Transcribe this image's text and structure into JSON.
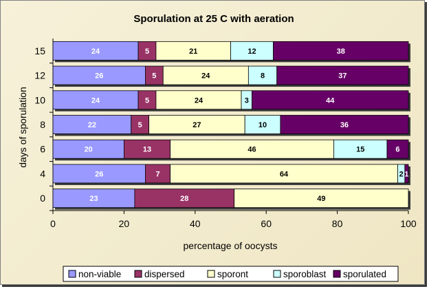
{
  "chart_data": {
    "type": "bar",
    "orientation": "horizontal",
    "stacked": "percent",
    "title": "Sporulation at 25 C with aeration",
    "xlabel": "percentage of oocysts",
    "ylabel": "days of sporulation",
    "xlim": [
      0,
      100
    ],
    "xticks": [
      0,
      20,
      40,
      60,
      80,
      100
    ],
    "grid": false,
    "legend_position": "bottom",
    "categories": [
      "0",
      "4",
      "6",
      "8",
      "10",
      "12",
      "15"
    ],
    "series": [
      {
        "name": "non-viable",
        "color": "#9999ff",
        "label_color": "#ffffff",
        "values": [
          23,
          26,
          20,
          22,
          24,
          26,
          24
        ]
      },
      {
        "name": "dispersed",
        "color": "#993366",
        "label_color": "#ffffff",
        "values": [
          28,
          7,
          13,
          5,
          5,
          5,
          5
        ]
      },
      {
        "name": "sporont",
        "color": "#ffffcc",
        "label_color": "#000000",
        "values": [
          49,
          64,
          46,
          27,
          24,
          24,
          21
        ]
      },
      {
        "name": "sporoblast",
        "color": "#ccffff",
        "label_color": "#000000",
        "values": [
          0,
          2,
          15,
          10,
          3,
          8,
          12
        ]
      },
      {
        "name": "sporulated",
        "color": "#660066",
        "label_color": "#ffffff",
        "values": [
          0,
          1,
          6,
          36,
          44,
          37,
          38
        ]
      }
    ]
  }
}
